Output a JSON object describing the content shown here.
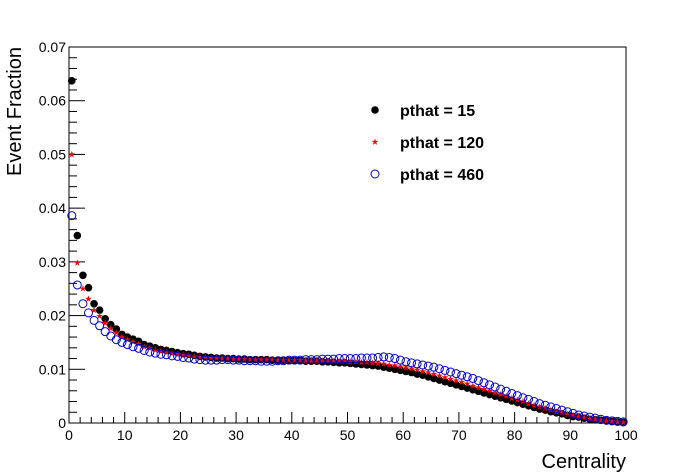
{
  "chart_data": {
    "type": "scatter",
    "xlabel": "Centrality",
    "ylabel": "Event Fraction",
    "xlim": [
      0,
      100
    ],
    "ylim": [
      0,
      0.07
    ],
    "x_ticks": [
      0,
      10,
      20,
      30,
      40,
      50,
      60,
      70,
      80,
      90,
      100
    ],
    "y_ticks": [
      0,
      0.01,
      0.02,
      0.03,
      0.04,
      0.05,
      0.06,
      0.07
    ],
    "x_tick_labels": [
      "0",
      "10",
      "20",
      "30",
      "40",
      "50",
      "60",
      "70",
      "80",
      "90",
      "100"
    ],
    "y_tick_labels": [
      "0",
      "0.01",
      "0.02",
      "0.03",
      "0.04",
      "0.05",
      "0.06",
      "0.07"
    ],
    "grid": false,
    "legend_position": "top-right",
    "series": [
      {
        "name": "pthat = 15",
        "marker": "filled-circle",
        "color": "#000000",
        "x": [
          0.5,
          1.5,
          2.5,
          3.5,
          4.5,
          5.5,
          6.5,
          7.5,
          8.5,
          9.5,
          10.5,
          11.5,
          12.5,
          13.5,
          14.5,
          15.5,
          16.5,
          17.5,
          18.5,
          19.5,
          20.5,
          21.5,
          22.5,
          23.5,
          24.5,
          25.5,
          26.5,
          27.5,
          28.5,
          29.5,
          30.5,
          31.5,
          32.5,
          33.5,
          34.5,
          35.5,
          36.5,
          37.5,
          38.5,
          39.5,
          40.5,
          41.5,
          42.5,
          43.5,
          44.5,
          45.5,
          46.5,
          47.5,
          48.5,
          49.5,
          50.5,
          51.5,
          52.5,
          53.5,
          54.5,
          55.5,
          56.5,
          57.5,
          58.5,
          59.5,
          60.5,
          61.5,
          62.5,
          63.5,
          64.5,
          65.5,
          66.5,
          67.5,
          68.5,
          69.5,
          70.5,
          71.5,
          72.5,
          73.5,
          74.5,
          75.5,
          76.5,
          77.5,
          78.5,
          79.5,
          80.5,
          81.5,
          82.5,
          83.5,
          84.5,
          85.5,
          86.5,
          87.5,
          88.5,
          89.5,
          90.5,
          91.5,
          92.5,
          93.5,
          94.5,
          95.5,
          96.5,
          97.5,
          98.5,
          99.5
        ],
        "y": [
          0.0637,
          0.0349,
          0.0275,
          0.0252,
          0.0222,
          0.021,
          0.0194,
          0.0183,
          0.0175,
          0.0165,
          0.016,
          0.0156,
          0.0152,
          0.0146,
          0.0143,
          0.014,
          0.0137,
          0.0135,
          0.0133,
          0.0131,
          0.0129,
          0.0128,
          0.0126,
          0.0124,
          0.0123,
          0.0122,
          0.0121,
          0.0121,
          0.012,
          0.012,
          0.0119,
          0.0119,
          0.0118,
          0.0118,
          0.0118,
          0.0118,
          0.0117,
          0.0117,
          0.0117,
          0.0116,
          0.0116,
          0.0116,
          0.0115,
          0.0115,
          0.0115,
          0.0114,
          0.0114,
          0.0113,
          0.0112,
          0.0112,
          0.0111,
          0.011,
          0.0109,
          0.0108,
          0.0107,
          0.0106,
          0.0104,
          0.0102,
          0.01,
          0.0098,
          0.0096,
          0.0094,
          0.0091,
          0.0089,
          0.0086,
          0.0083,
          0.008,
          0.0077,
          0.0074,
          0.0071,
          0.0068,
          0.0065,
          0.0062,
          0.0059,
          0.0056,
          0.0053,
          0.005,
          0.0047,
          0.0044,
          0.0041,
          0.0038,
          0.0035,
          0.0032,
          0.0029,
          0.0026,
          0.0024,
          0.0021,
          0.0019,
          0.0017,
          0.0014,
          0.0012,
          0.0011,
          0.0009,
          0.0007,
          0.0006,
          0.0005,
          0.0004,
          0.0003,
          0.0002,
          0.0001
        ]
      },
      {
        "name": "pthat = 120",
        "marker": "star",
        "color": "#ff0000",
        "x": [
          0.5,
          1.5,
          2.5,
          3.5,
          4.5,
          5.5,
          6.5,
          7.5,
          8.5,
          9.5,
          10.5,
          11.5,
          12.5,
          13.5,
          14.5,
          15.5,
          16.5,
          17.5,
          18.5,
          19.5,
          20.5,
          21.5,
          22.5,
          23.5,
          24.5,
          25.5,
          26.5,
          27.5,
          28.5,
          29.5,
          30.5,
          31.5,
          32.5,
          33.5,
          34.5,
          35.5,
          36.5,
          37.5,
          38.5,
          39.5,
          40.5,
          41.5,
          42.5,
          43.5,
          44.5,
          45.5,
          46.5,
          47.5,
          48.5,
          49.5,
          50.5,
          51.5,
          52.5,
          53.5,
          54.5,
          55.5,
          56.5,
          57.5,
          58.5,
          59.5,
          60.5,
          61.5,
          62.5,
          63.5,
          64.5,
          65.5,
          66.5,
          67.5,
          68.5,
          69.5,
          70.5,
          71.5,
          72.5,
          73.5,
          74.5,
          75.5,
          76.5,
          77.5,
          78.5,
          79.5,
          80.5,
          81.5,
          82.5,
          83.5,
          84.5,
          85.5,
          86.5,
          87.5,
          88.5,
          89.5,
          90.5,
          91.5,
          92.5,
          93.5,
          94.5,
          95.5,
          96.5,
          97.5,
          98.5,
          99.5
        ],
        "y": [
          0.05,
          0.0298,
          0.025,
          0.0231,
          0.021,
          0.0199,
          0.0186,
          0.0176,
          0.0168,
          0.016,
          0.0155,
          0.0151,
          0.0147,
          0.0142,
          0.0139,
          0.0136,
          0.0134,
          0.0132,
          0.013,
          0.0128,
          0.0127,
          0.0126,
          0.0124,
          0.0123,
          0.0122,
          0.0121,
          0.0121,
          0.012,
          0.012,
          0.0119,
          0.0119,
          0.0119,
          0.0118,
          0.0118,
          0.0118,
          0.0118,
          0.0118,
          0.0117,
          0.0117,
          0.0117,
          0.0117,
          0.0117,
          0.0116,
          0.0116,
          0.0116,
          0.0116,
          0.0116,
          0.0115,
          0.0115,
          0.0115,
          0.0114,
          0.0114,
          0.0113,
          0.0113,
          0.0112,
          0.0111,
          0.011,
          0.0108,
          0.0107,
          0.0105,
          0.0103,
          0.0101,
          0.0099,
          0.0096,
          0.0094,
          0.0091,
          0.0088,
          0.0085,
          0.0082,
          0.0079,
          0.0076,
          0.0073,
          0.0069,
          0.0066,
          0.0063,
          0.006,
          0.0056,
          0.0053,
          0.005,
          0.0046,
          0.0043,
          0.004,
          0.0036,
          0.0033,
          0.003,
          0.0027,
          0.0024,
          0.0021,
          0.0019,
          0.0016,
          0.0014,
          0.0012,
          0.001,
          0.0008,
          0.0007,
          0.0005,
          0.0004,
          0.0003,
          0.0002,
          0.0001
        ]
      },
      {
        "name": "pthat = 460",
        "marker": "open-circle",
        "color": "#0000cc",
        "x": [
          0.5,
          1.5,
          2.5,
          3.5,
          4.5,
          5.5,
          6.5,
          7.5,
          8.5,
          9.5,
          10.5,
          11.5,
          12.5,
          13.5,
          14.5,
          15.5,
          16.5,
          17.5,
          18.5,
          19.5,
          20.5,
          21.5,
          22.5,
          23.5,
          24.5,
          25.5,
          26.5,
          27.5,
          28.5,
          29.5,
          30.5,
          31.5,
          32.5,
          33.5,
          34.5,
          35.5,
          36.5,
          37.5,
          38.5,
          39.5,
          40.5,
          41.5,
          42.5,
          43.5,
          44.5,
          45.5,
          46.5,
          47.5,
          48.5,
          49.5,
          50.5,
          51.5,
          52.5,
          53.5,
          54.5,
          55.5,
          56.5,
          57.5,
          58.5,
          59.5,
          60.5,
          61.5,
          62.5,
          63.5,
          64.5,
          65.5,
          66.5,
          67.5,
          68.5,
          69.5,
          70.5,
          71.5,
          72.5,
          73.5,
          74.5,
          75.5,
          76.5,
          77.5,
          78.5,
          79.5,
          80.5,
          81.5,
          82.5,
          83.5,
          84.5,
          85.5,
          86.5,
          87.5,
          88.5,
          89.5,
          90.5,
          91.5,
          92.5,
          93.5,
          94.5,
          95.5,
          96.5,
          97.5,
          98.5,
          99.5
        ],
        "y": [
          0.0386,
          0.0257,
          0.0222,
          0.0205,
          0.0191,
          0.0181,
          0.017,
          0.0162,
          0.0155,
          0.015,
          0.0146,
          0.0142,
          0.0139,
          0.0135,
          0.0132,
          0.013,
          0.0128,
          0.0127,
          0.0125,
          0.0124,
          0.0122,
          0.0121,
          0.0119,
          0.0118,
          0.0117,
          0.0117,
          0.0117,
          0.0118,
          0.0118,
          0.0117,
          0.0117,
          0.0116,
          0.0116,
          0.0116,
          0.0115,
          0.0115,
          0.0115,
          0.0116,
          0.0116,
          0.0117,
          0.0117,
          0.0117,
          0.0118,
          0.0118,
          0.0118,
          0.0119,
          0.0119,
          0.0119,
          0.012,
          0.012,
          0.012,
          0.012,
          0.0121,
          0.0121,
          0.0121,
          0.0122,
          0.0123,
          0.0122,
          0.012,
          0.0117,
          0.0114,
          0.0112,
          0.011,
          0.0108,
          0.0106,
          0.0104,
          0.0101,
          0.0098,
          0.0095,
          0.0092,
          0.0089,
          0.0086,
          0.0083,
          0.0079,
          0.0075,
          0.0071,
          0.0067,
          0.0063,
          0.0059,
          0.0055,
          0.0051,
          0.0047,
          0.0044,
          0.004,
          0.0036,
          0.0033,
          0.003,
          0.0027,
          0.0024,
          0.0021,
          0.0018,
          0.0015,
          0.0013,
          0.0011,
          0.0009,
          0.0007,
          0.0005,
          0.0004,
          0.0003,
          0.0002
        ]
      }
    ]
  }
}
